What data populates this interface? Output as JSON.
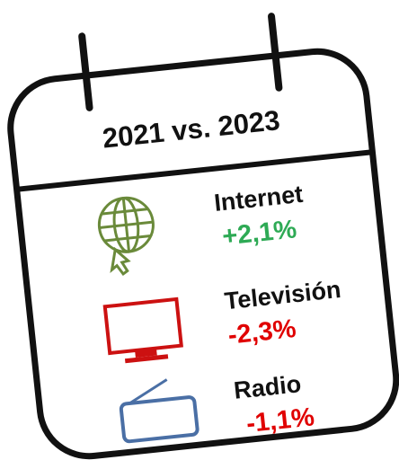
{
  "title": "2021 vs. 2023",
  "items": [
    {
      "label": "Internet",
      "change": "+2,1%"
    },
    {
      "label": "Televisión",
      "change": "-2,3%"
    },
    {
      "label": "Radio",
      "change": "-1,1%"
    }
  ]
}
